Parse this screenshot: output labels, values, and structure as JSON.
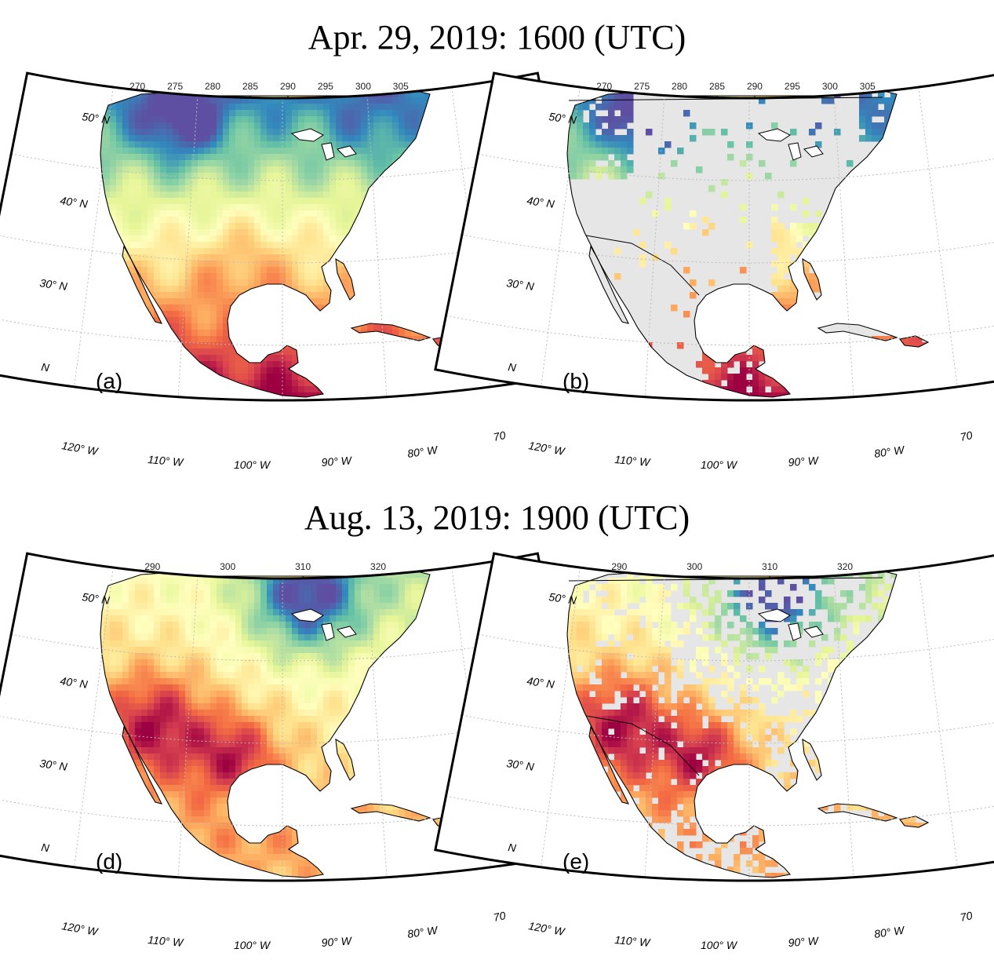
{
  "sections": [
    {
      "title": "Apr. 29, 2019: 1600 (UTC)",
      "colorbar_ticks": [
        "270",
        "275",
        "280",
        "285",
        "290",
        "295",
        "300",
        "305"
      ],
      "colorbar_range": [
        268,
        307
      ],
      "panels": [
        {
          "label": "(a)",
          "kind": "full"
        },
        {
          "label": "(b)",
          "kind": "masked"
        }
      ]
    },
    {
      "title": "Aug. 13, 2019: 1900 (UTC)",
      "colorbar_ticks": [
        "290",
        "300",
        "310",
        "320"
      ],
      "colorbar_range": [
        286,
        325
      ],
      "panels": [
        {
          "label": "(d)",
          "kind": "full"
        },
        {
          "label": "(e)",
          "kind": "masked"
        }
      ]
    }
  ],
  "lat_labels": [
    "50° N",
    "40° N",
    "30° N",
    "N"
  ],
  "lon_labels": [
    "120° W",
    "110° W",
    "100° W",
    "90° W",
    "80° W",
    "70"
  ],
  "colors": {
    "colormap": [
      "#5e4fa2",
      "#3288bd",
      "#66c2a5",
      "#abdda4",
      "#e6f598",
      "#ffffbf",
      "#fee08b",
      "#fdae61",
      "#f46d43",
      "#d53e4f",
      "#9e0142"
    ],
    "masked_land": "#e6e6e6",
    "grid": "#bbbbbb"
  }
}
